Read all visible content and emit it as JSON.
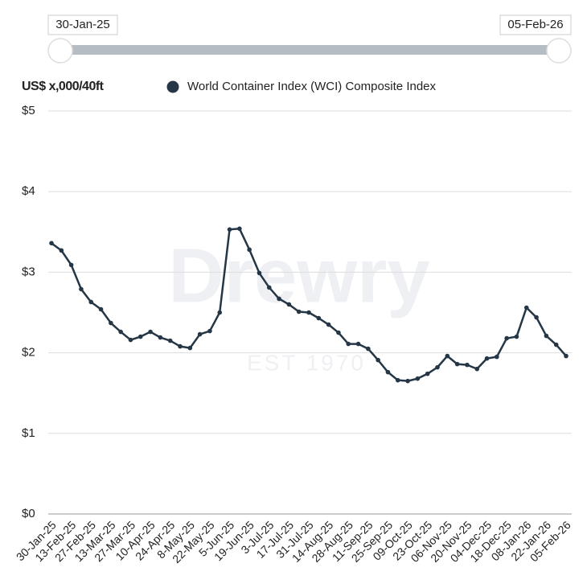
{
  "slider": {
    "start": "30-Jan-25",
    "end": "05-Feb-26"
  },
  "watermark": {
    "brand": "Drewry",
    "est": "EST 1970"
  },
  "chart_data": {
    "type": "line",
    "ylabel": "US$ x,000/40ft",
    "categories": [
      "30-Jan-25",
      null,
      "13-Feb-25",
      null,
      "27-Feb-25",
      null,
      "13-Mar-25",
      null,
      "27-Mar-25",
      null,
      "10-Apr-25",
      null,
      "24-Apr-25",
      null,
      "8-May-25",
      null,
      "22-May-25",
      null,
      "5-Jun-25",
      null,
      "19-Jun-25",
      null,
      "3-Jul-25",
      null,
      "17-Jul-25",
      null,
      "31-Jul-25",
      null,
      "14-Aug-25",
      null,
      "28-Aug-25",
      null,
      "11-Sep-25",
      null,
      "25-Sep-25",
      null,
      "09-Oct-25",
      null,
      "23-Oct-25",
      null,
      "06-Nov-25",
      null,
      "20-Nov-25",
      null,
      "04-Dec-25",
      null,
      "18-Dec-25",
      null,
      "08-Jan-26",
      null,
      "22-Jan-26",
      null,
      "05-Feb-26"
    ],
    "series": [
      {
        "name": "World Container Index (WCI) Composite Index",
        "color": "#253746",
        "values": [
          3.36,
          3.27,
          3.09,
          2.79,
          2.63,
          2.54,
          2.37,
          2.26,
          2.16,
          2.2,
          2.26,
          2.19,
          2.15,
          2.08,
          2.06,
          2.23,
          2.27,
          2.5,
          3.53,
          3.54,
          3.28,
          2.99,
          2.81,
          2.67,
          2.6,
          2.51,
          2.5,
          2.43,
          2.35,
          2.25,
          2.11,
          2.11,
          2.05,
          1.91,
          1.76,
          1.66,
          1.65,
          1.68,
          1.74,
          1.82,
          1.96,
          1.86,
          1.85,
          1.8,
          1.93,
          1.95,
          2.18,
          2.2,
          2.56,
          2.44,
          2.21,
          2.1,
          1.96
        ]
      }
    ],
    "ylim": [
      0,
      5
    ],
    "yticks": [
      {
        "value": 0,
        "label": "$0"
      },
      {
        "value": 1,
        "label": "$1"
      },
      {
        "value": 2,
        "label": "$2"
      },
      {
        "value": 3,
        "label": "$3"
      },
      {
        "value": 4,
        "label": "$4"
      },
      {
        "value": 5,
        "label": "$5"
      }
    ],
    "grid": true
  }
}
